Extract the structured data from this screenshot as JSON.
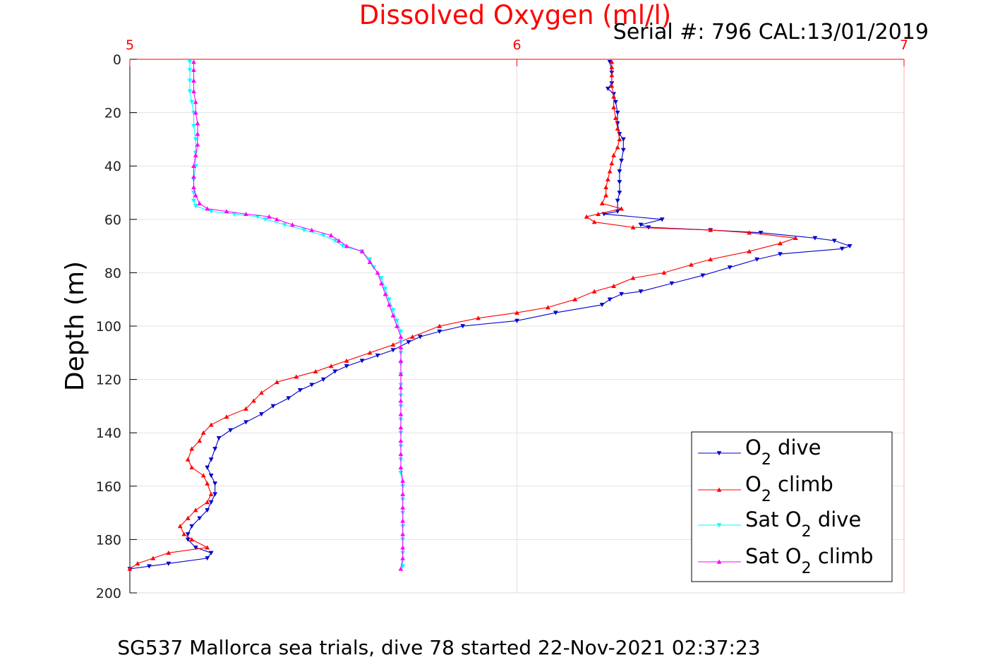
{
  "chart_data": {
    "type": "line",
    "title": "Dissolved Oxygen (ml/l)",
    "serial": "Serial #: 796  CAL:13/01/2019",
    "ylabel": "Depth (m)",
    "caption": "SG537 Mallorca sea trials, dive 78 started 22-Nov-2021 02:37:23",
    "xlim": [
      5,
      7
    ],
    "ylim": [
      0,
      200
    ],
    "y_reversed": true,
    "x_axis_position": "top",
    "x_ticks": [
      5,
      6,
      7
    ],
    "y_ticks": [
      0,
      20,
      40,
      60,
      80,
      100,
      120,
      140,
      160,
      180,
      200
    ],
    "grid": true,
    "legend_position": "bottom-right",
    "colors": {
      "title": "#ff0000",
      "x_axis": "#ff0000",
      "o2_dive": "#0000cc",
      "o2_climb": "#ff0000",
      "sat_dive": "#00ffff",
      "sat_climb": "#ff00ff"
    },
    "series": [
      {
        "key": "o2_dive",
        "label_main": "O",
        "label_sub": "2",
        "label_rest": " dive",
        "color": "#0000cc",
        "marker": "down",
        "points": [
          [
            6.24,
            1
          ],
          [
            6.245,
            5
          ],
          [
            6.245,
            9
          ],
          [
            6.235,
            11
          ],
          [
            6.25,
            13
          ],
          [
            6.255,
            16
          ],
          [
            6.26,
            20
          ],
          [
            6.26,
            24
          ],
          [
            6.265,
            28
          ],
          [
            6.275,
            30
          ],
          [
            6.275,
            34
          ],
          [
            6.27,
            38
          ],
          [
            6.265,
            42
          ],
          [
            6.265,
            46
          ],
          [
            6.265,
            50
          ],
          [
            6.26,
            53
          ],
          [
            6.26,
            57
          ],
          [
            6.225,
            58
          ],
          [
            6.375,
            60
          ],
          [
            6.32,
            62
          ],
          [
            6.34,
            63
          ],
          [
            6.5,
            64
          ],
          [
            6.63,
            65
          ],
          [
            6.77,
            67
          ],
          [
            6.82,
            68
          ],
          [
            6.86,
            70
          ],
          [
            6.84,
            71
          ],
          [
            6.68,
            73
          ],
          [
            6.62,
            75
          ],
          [
            6.55,
            78
          ],
          [
            6.48,
            81
          ],
          [
            6.4,
            84
          ],
          [
            6.32,
            87
          ],
          [
            6.27,
            88
          ],
          [
            6.24,
            90
          ],
          [
            6.22,
            92
          ],
          [
            6.1,
            95
          ],
          [
            6.0,
            98
          ],
          [
            5.86,
            100
          ],
          [
            5.8,
            102
          ],
          [
            5.75,
            104
          ],
          [
            5.72,
            106
          ],
          [
            5.68,
            109
          ],
          [
            5.64,
            111
          ],
          [
            5.6,
            113
          ],
          [
            5.56,
            115
          ],
          [
            5.53,
            117
          ],
          [
            5.5,
            120
          ],
          [
            5.47,
            122
          ],
          [
            5.44,
            124
          ],
          [
            5.41,
            127
          ],
          [
            5.37,
            130
          ],
          [
            5.34,
            133
          ],
          [
            5.3,
            136
          ],
          [
            5.26,
            139
          ],
          [
            5.23,
            142
          ],
          [
            5.22,
            146
          ],
          [
            5.21,
            150
          ],
          [
            5.2,
            153
          ],
          [
            5.21,
            156
          ],
          [
            5.22,
            159
          ],
          [
            5.22,
            163
          ],
          [
            5.21,
            166
          ],
          [
            5.2,
            169
          ],
          [
            5.18,
            172
          ],
          [
            5.16,
            175
          ],
          [
            5.15,
            178
          ],
          [
            5.15,
            180
          ],
          [
            5.17,
            183
          ],
          [
            5.21,
            185
          ],
          [
            5.2,
            187
          ],
          [
            5.1,
            189
          ],
          [
            5.05,
            190
          ],
          [
            5.0,
            191
          ]
        ]
      },
      {
        "key": "o2_climb",
        "label_main": "O",
        "label_sub": "2",
        "label_rest": " climb",
        "color": "#ff0000",
        "marker": "up",
        "points": [
          [
            5.0,
            191
          ],
          [
            5.02,
            189
          ],
          [
            5.06,
            187
          ],
          [
            5.1,
            185
          ],
          [
            5.2,
            183
          ],
          [
            5.16,
            180
          ],
          [
            5.14,
            178
          ],
          [
            5.13,
            175
          ],
          [
            5.15,
            172
          ],
          [
            5.17,
            169
          ],
          [
            5.2,
            166
          ],
          [
            5.21,
            163
          ],
          [
            5.2,
            159
          ],
          [
            5.19,
            156
          ],
          [
            5.16,
            153
          ],
          [
            5.15,
            150
          ],
          [
            5.16,
            146
          ],
          [
            5.18,
            143
          ],
          [
            5.19,
            140
          ],
          [
            5.21,
            137
          ],
          [
            5.25,
            134
          ],
          [
            5.3,
            131
          ],
          [
            5.32,
            128
          ],
          [
            5.34,
            125
          ],
          [
            5.38,
            121
          ],
          [
            5.43,
            119
          ],
          [
            5.48,
            117
          ],
          [
            5.52,
            115
          ],
          [
            5.56,
            113
          ],
          [
            5.62,
            110
          ],
          [
            5.68,
            107
          ],
          [
            5.73,
            104
          ],
          [
            5.8,
            100
          ],
          [
            5.9,
            97
          ],
          [
            6.0,
            95
          ],
          [
            6.08,
            93
          ],
          [
            6.15,
            90
          ],
          [
            6.2,
            87
          ],
          [
            6.25,
            85
          ],
          [
            6.3,
            82
          ],
          [
            6.38,
            80
          ],
          [
            6.45,
            77
          ],
          [
            6.5,
            75
          ],
          [
            6.6,
            72
          ],
          [
            6.68,
            69
          ],
          [
            6.72,
            67
          ],
          [
            6.6,
            65
          ],
          [
            6.5,
            64
          ],
          [
            6.3,
            63
          ],
          [
            6.2,
            61
          ],
          [
            6.18,
            59
          ],
          [
            6.21,
            58
          ],
          [
            6.27,
            56
          ],
          [
            6.22,
            54
          ],
          [
            6.23,
            51
          ],
          [
            6.23,
            48
          ],
          [
            6.235,
            45
          ],
          [
            6.24,
            42
          ],
          [
            6.245,
            39
          ],
          [
            6.25,
            36
          ],
          [
            6.26,
            33
          ],
          [
            6.265,
            30
          ],
          [
            6.26,
            26
          ],
          [
            6.255,
            22
          ],
          [
            6.25,
            18
          ],
          [
            6.25,
            14
          ],
          [
            6.245,
            10
          ],
          [
            6.245,
            6
          ],
          [
            6.245,
            3
          ],
          [
            6.245,
            1
          ]
        ]
      },
      {
        "key": "sat_dive",
        "label_main": "Sat O",
        "label_sub": "2",
        "label_rest": " dive",
        "color": "#00ffff",
        "marker": "down",
        "points": [
          [
            5.155,
            1
          ],
          [
            5.155,
            4
          ],
          [
            5.155,
            8
          ],
          [
            5.155,
            12
          ],
          [
            5.16,
            16
          ],
          [
            5.165,
            20
          ],
          [
            5.165,
            25
          ],
          [
            5.17,
            30
          ],
          [
            5.17,
            35
          ],
          [
            5.17,
            40
          ],
          [
            5.165,
            45
          ],
          [
            5.165,
            50
          ],
          [
            5.165,
            53
          ],
          [
            5.17,
            55
          ],
          [
            5.21,
            57
          ],
          [
            5.27,
            58
          ],
          [
            5.33,
            59
          ],
          [
            5.35,
            60
          ],
          [
            5.4,
            62
          ],
          [
            5.45,
            64
          ],
          [
            5.5,
            66
          ],
          [
            5.53,
            68
          ],
          [
            5.55,
            70
          ],
          [
            5.6,
            72
          ],
          [
            5.62,
            75
          ],
          [
            5.63,
            78
          ],
          [
            5.65,
            82
          ],
          [
            5.66,
            86
          ],
          [
            5.67,
            90
          ],
          [
            5.68,
            94
          ],
          [
            5.69,
            98
          ],
          [
            5.7,
            102
          ],
          [
            5.7,
            106
          ],
          [
            5.7,
            110
          ],
          [
            5.7,
            114
          ],
          [
            5.7,
            118
          ],
          [
            5.7,
            122
          ],
          [
            5.7,
            126
          ],
          [
            5.7,
            130
          ],
          [
            5.7,
            135
          ],
          [
            5.7,
            140
          ],
          [
            5.7,
            145
          ],
          [
            5.7,
            150
          ],
          [
            5.7,
            155
          ],
          [
            5.705,
            160
          ],
          [
            5.705,
            165
          ],
          [
            5.705,
            170
          ],
          [
            5.705,
            175
          ],
          [
            5.705,
            180
          ],
          [
            5.705,
            185
          ],
          [
            5.705,
            190
          ]
        ]
      },
      {
        "key": "sat_climb",
        "label_main": "Sat O",
        "label_sub": "2",
        "label_rest": " climb",
        "color": "#ff00ff",
        "marker": "up",
        "points": [
          [
            5.7,
            191
          ],
          [
            5.705,
            187
          ],
          [
            5.705,
            183
          ],
          [
            5.705,
            178
          ],
          [
            5.705,
            173
          ],
          [
            5.705,
            168
          ],
          [
            5.705,
            163
          ],
          [
            5.705,
            158
          ],
          [
            5.7,
            153
          ],
          [
            5.7,
            148
          ],
          [
            5.7,
            143
          ],
          [
            5.7,
            138
          ],
          [
            5.7,
            133
          ],
          [
            5.7,
            128
          ],
          [
            5.7,
            123
          ],
          [
            5.7,
            118
          ],
          [
            5.7,
            113
          ],
          [
            5.7,
            108
          ],
          [
            5.7,
            104
          ],
          [
            5.69,
            100
          ],
          [
            5.68,
            96
          ],
          [
            5.67,
            92
          ],
          [
            5.66,
            88
          ],
          [
            5.65,
            84
          ],
          [
            5.64,
            80
          ],
          [
            5.62,
            76
          ],
          [
            5.6,
            72
          ],
          [
            5.56,
            70
          ],
          [
            5.54,
            68
          ],
          [
            5.52,
            66
          ],
          [
            5.47,
            64
          ],
          [
            5.42,
            62
          ],
          [
            5.38,
            60
          ],
          [
            5.36,
            59
          ],
          [
            5.3,
            58
          ],
          [
            5.25,
            57
          ],
          [
            5.2,
            56
          ],
          [
            5.18,
            54
          ],
          [
            5.17,
            51
          ],
          [
            5.165,
            48
          ],
          [
            5.165,
            44
          ],
          [
            5.165,
            40
          ],
          [
            5.17,
            36
          ],
          [
            5.175,
            32
          ],
          [
            5.175,
            28
          ],
          [
            5.175,
            24
          ],
          [
            5.17,
            20
          ],
          [
            5.17,
            16
          ],
          [
            5.165,
            12
          ],
          [
            5.165,
            8
          ],
          [
            5.165,
            4
          ],
          [
            5.165,
            1
          ]
        ]
      }
    ]
  }
}
